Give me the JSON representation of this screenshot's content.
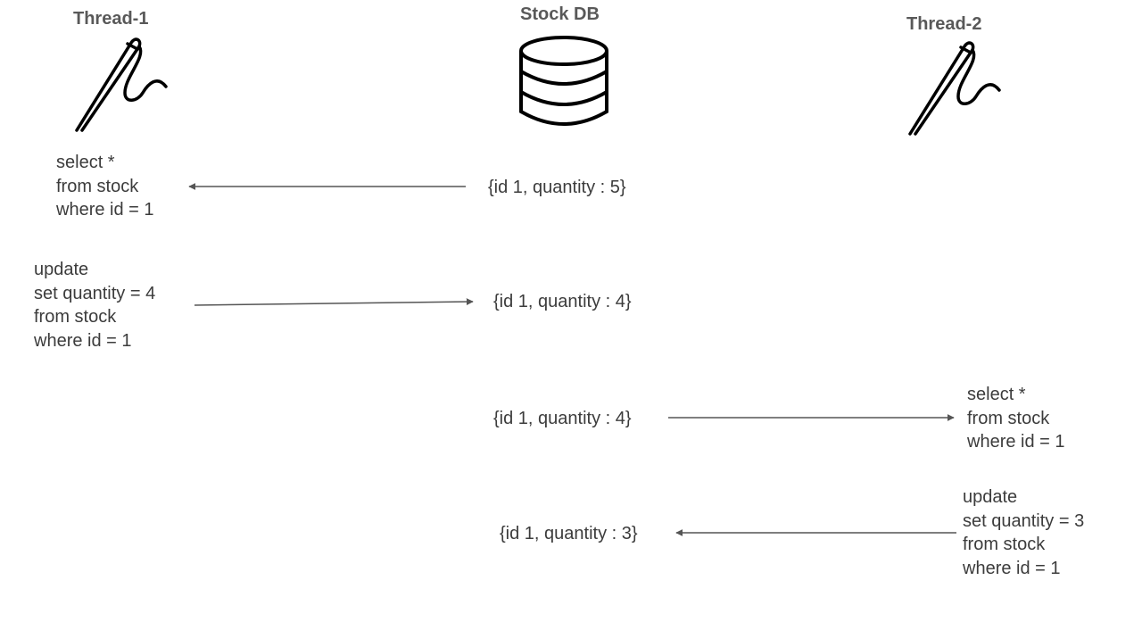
{
  "actors": {
    "thread1": {
      "title": "Thread-1",
      "icon": "needle-icon"
    },
    "db": {
      "title": "Stock DB",
      "icon": "database-icon"
    },
    "thread2": {
      "title": "Thread-2",
      "icon": "needle-icon"
    }
  },
  "steps": [
    {
      "query": [
        "select *",
        "from stock",
        "where id = 1"
      ],
      "value": "{id 1, quantity : 5}",
      "direction": "db-to-thread-1"
    },
    {
      "query": [
        "update",
        "set quantity = 4",
        "from stock",
        "where id = 1"
      ],
      "value": "{id 1, quantity : 4}",
      "direction": "thread-1-to-db"
    },
    {
      "query": [
        "select *",
        "from stock",
        "where id = 1"
      ],
      "value": "{id 1, quantity : 4}",
      "direction": "db-to-thread-2"
    },
    {
      "query": [
        "update",
        "set quantity = 3",
        "from stock",
        "where id = 1"
      ],
      "value": "{id 1, quantity : 3}",
      "direction": "thread-2-to-db"
    }
  ],
  "colors": {
    "text": "#3c3c3c",
    "title": "#595959",
    "arrow": "#555555",
    "icon": "#000000"
  }
}
